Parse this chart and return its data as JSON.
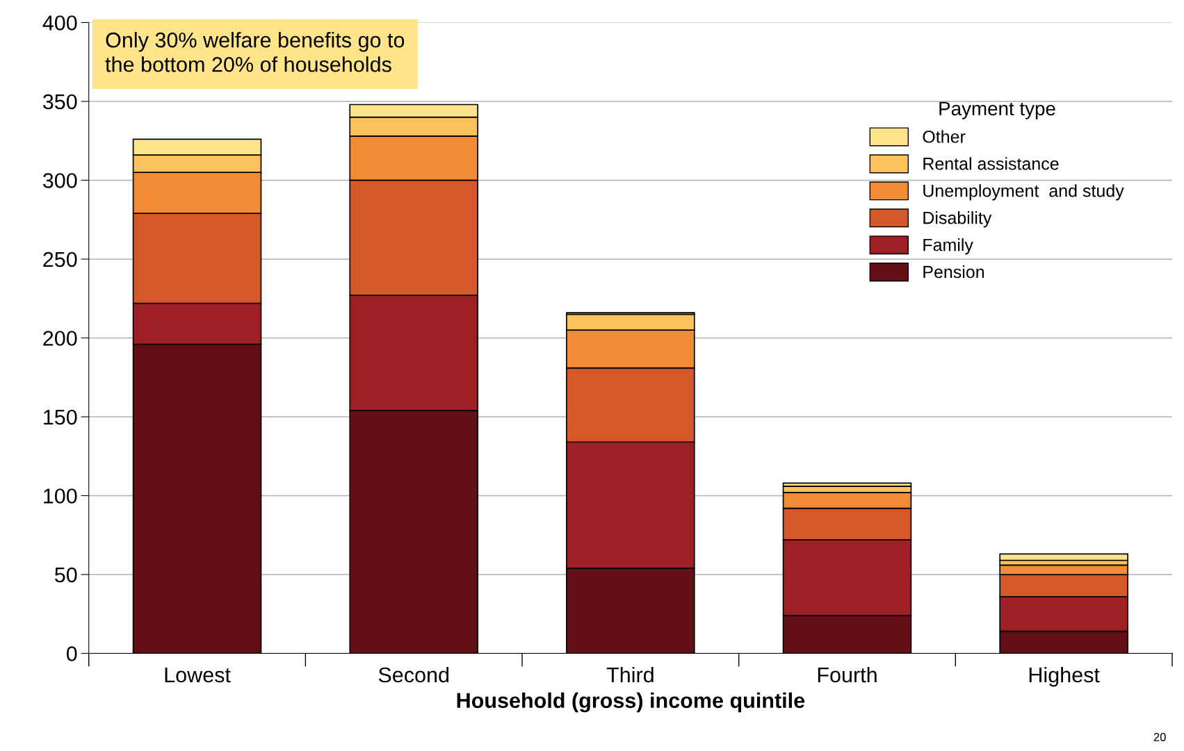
{
  "chart_data": {
    "type": "bar",
    "stacked": true,
    "title": "Only 30% welfare benefits go to\nthe bottom 20% of households",
    "xlabel": "Household (gross) income quintile",
    "legend_title": "Payment type",
    "legend": "top right",
    "grid": "y",
    "categories": [
      "Lowest",
      "Second",
      "Third",
      "Fourth",
      "Highest"
    ],
    "series": [
      {
        "name": "Pension",
        "color": "#621015",
        "values": [
          196,
          154,
          54,
          24,
          14
        ]
      },
      {
        "name": "Family",
        "color": "#9e2025",
        "values": [
          26,
          73,
          80,
          48,
          22
        ]
      },
      {
        "name": "Disability",
        "color": "#d4582a",
        "values": [
          57,
          73,
          47,
          20,
          14
        ]
      },
      {
        "name": "Unemployment  and study",
        "color": "#f28c34",
        "values": [
          26,
          28,
          24,
          10,
          6
        ]
      },
      {
        "name": "Rental assistance",
        "color": "#fdc25c",
        "values": [
          11,
          12,
          10,
          4,
          3
        ]
      },
      {
        "name": "Other",
        "color": "#fde38a",
        "values": [
          10,
          8,
          1,
          2,
          4
        ]
      }
    ],
    "ylim": [
      0,
      400
    ],
    "yticks": [
      0,
      50,
      100,
      150,
      200,
      250,
      300,
      350,
      400
    ],
    "annotations": [
      "20"
    ]
  }
}
